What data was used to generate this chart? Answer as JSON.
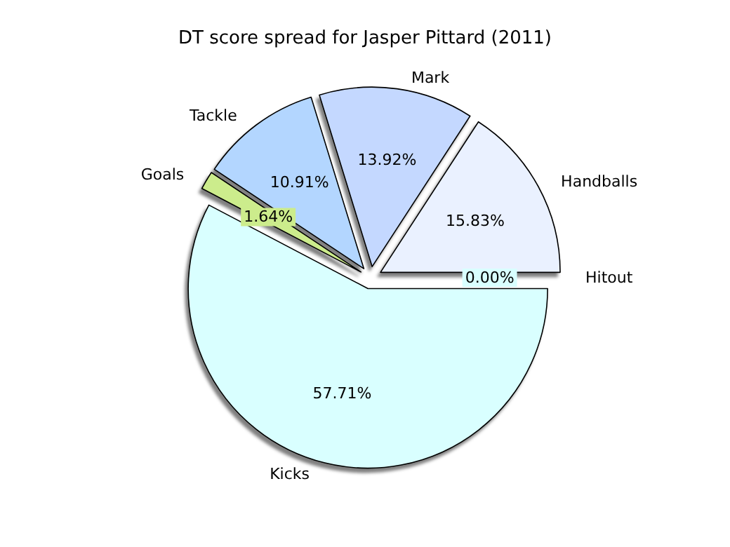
{
  "chart_data": {
    "type": "pie",
    "title": "DT score spread for Jasper Pittard (2011)",
    "categories": [
      "Handballs",
      "Mark",
      "Tackle",
      "Goals",
      "Kicks",
      "Hitout"
    ],
    "values": [
      15.83,
      13.92,
      10.91,
      1.64,
      57.71,
      0.0
    ],
    "value_labels": [
      "15.83%",
      "13.92%",
      "10.91%",
      "1.64%",
      "57.71%",
      "0.00%"
    ],
    "colors": [
      "#eaf1ff",
      "#c4d8ff",
      "#b3d6ff",
      "#ccec8c",
      "#d9ffff",
      "#d9ffff"
    ],
    "legend": false
  }
}
